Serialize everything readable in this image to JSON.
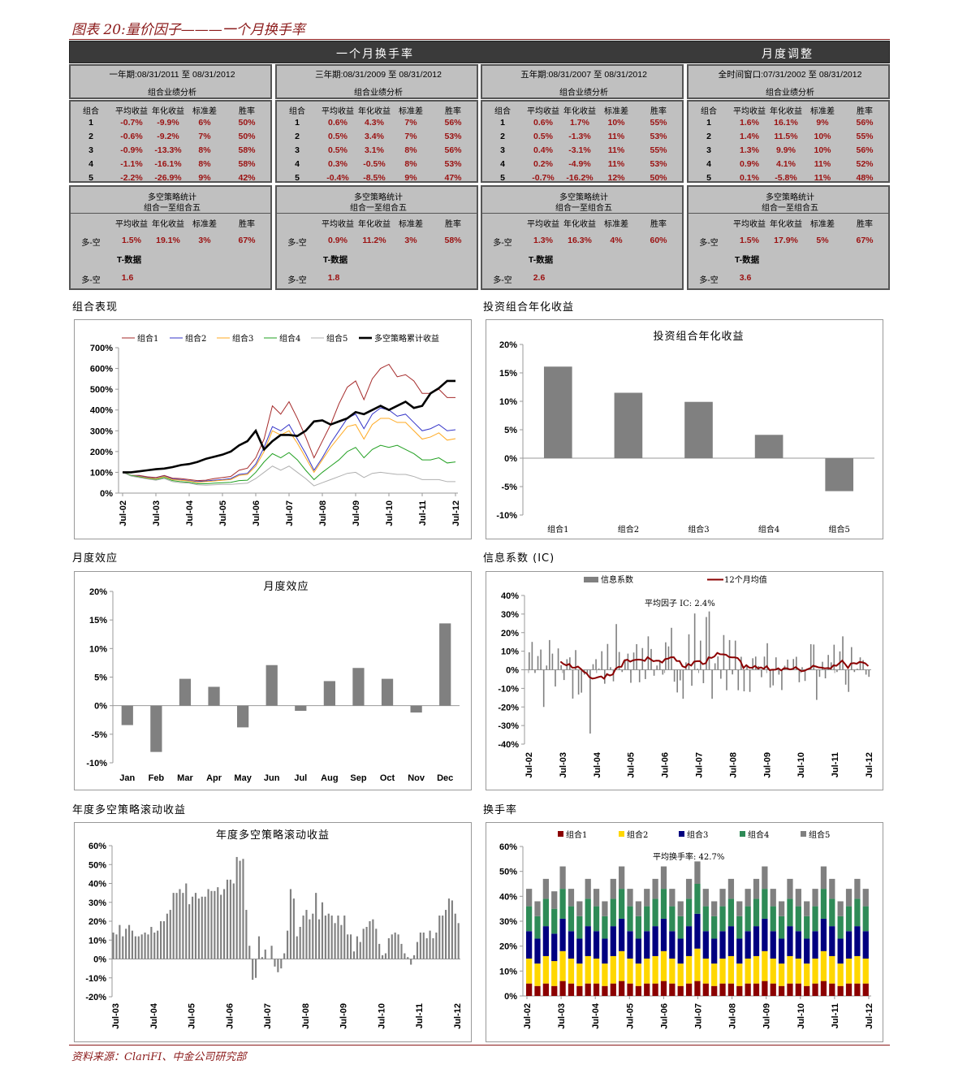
{
  "figure_title": "图表 20:量价因子———一个月换手率",
  "header": {
    "left": "一个月换手率",
    "right": "月度调整"
  },
  "columns": [
    "组合",
    "平均收益",
    "年化收益",
    "标准差",
    "胜率"
  ],
  "ls_columns": [
    "平均收益",
    "年化收益",
    "标准差",
    "胜率"
  ],
  "panels": [
    {
      "period": "一年期:08/31/2011 至 08/31/2012",
      "subtitle": "组合业绩分析",
      "rows": [
        [
          "1",
          "-0.7%",
          "-9.9%",
          "6%",
          "50%"
        ],
        [
          "2",
          "-0.6%",
          "-9.2%",
          "7%",
          "50%"
        ],
        [
          "3",
          "-0.9%",
          "-13.3%",
          "8%",
          "58%"
        ],
        [
          "4",
          "-1.1%",
          "-16.1%",
          "8%",
          "58%"
        ],
        [
          "5",
          "-2.2%",
          "-26.9%",
          "9%",
          "42%"
        ]
      ],
      "ls_title": "多空策略统计",
      "ls_subtitle": "组合一至组合五",
      "ls_row": [
        "多-空",
        "1.5%",
        "19.1%",
        "3%",
        "67%"
      ],
      "t_label": "T-数据",
      "t_row": [
        "多-空",
        "1.6"
      ]
    },
    {
      "period": "三年期:08/31/2009 至 08/31/2012",
      "subtitle": "组合业绩分析",
      "rows": [
        [
          "1",
          "0.6%",
          "4.3%",
          "7%",
          "56%"
        ],
        [
          "2",
          "0.5%",
          "3.4%",
          "7%",
          "53%"
        ],
        [
          "3",
          "0.5%",
          "3.1%",
          "8%",
          "56%"
        ],
        [
          "4",
          "0.3%",
          "-0.5%",
          "8%",
          "53%"
        ],
        [
          "5",
          "-0.4%",
          "-8.5%",
          "9%",
          "47%"
        ]
      ],
      "ls_title": "多空策略统计",
      "ls_subtitle": "组合一至组合五",
      "ls_row": [
        "多-空",
        "0.9%",
        "11.2%",
        "3%",
        "58%"
      ],
      "t_label": "T-数据",
      "t_row": [
        "多-空",
        "1.8"
      ]
    },
    {
      "period": "五年期:08/31/2007 至 08/31/2012",
      "subtitle": "组合业绩分析",
      "rows": [
        [
          "1",
          "0.6%",
          "1.7%",
          "10%",
          "55%"
        ],
        [
          "2",
          "0.5%",
          "-1.3%",
          "11%",
          "53%"
        ],
        [
          "3",
          "0.4%",
          "-3.1%",
          "11%",
          "55%"
        ],
        [
          "4",
          "0.2%",
          "-4.9%",
          "11%",
          "53%"
        ],
        [
          "5",
          "-0.7%",
          "-16.2%",
          "12%",
          "50%"
        ]
      ],
      "ls_title": "多空策略统计",
      "ls_subtitle": "组合一至组合五",
      "ls_row": [
        "多-空",
        "1.3%",
        "16.3%",
        "4%",
        "60%"
      ],
      "t_label": "T-数据",
      "t_row": [
        "多-空",
        "2.6"
      ]
    },
    {
      "period": "全时间窗口:07/31/2002 至 08/31/2012",
      "subtitle": "组合业绩分析",
      "rows": [
        [
          "1",
          "1.6%",
          "16.1%",
          "9%",
          "56%"
        ],
        [
          "2",
          "1.4%",
          "11.5%",
          "10%",
          "55%"
        ],
        [
          "3",
          "1.3%",
          "9.9%",
          "10%",
          "56%"
        ],
        [
          "4",
          "0.9%",
          "4.1%",
          "11%",
          "52%"
        ],
        [
          "5",
          "0.1%",
          "-5.8%",
          "11%",
          "48%"
        ]
      ],
      "ls_title": "多空策略统计",
      "ls_subtitle": "组合一至组合五",
      "ls_row": [
        "多-空",
        "1.5%",
        "17.9%",
        "5%",
        "67%"
      ],
      "t_label": "T-数据",
      "t_row": [
        "多-空",
        "3.6"
      ]
    }
  ],
  "sections": [
    "组合表现",
    "投资组合年化收益",
    "月度效应",
    "信息系数 (IC)",
    "年度多空策略滚动收益",
    "换手率"
  ],
  "source": "资料来源：ClariFI、中金公司研究部",
  "chart_data": [
    {
      "type": "line",
      "title": "",
      "frequency": "quarterly",
      "x_tick_labels": [
        "Jul-02",
        "Jul-03",
        "Jul-04",
        "Jul-05",
        "Jul-06",
        "Jul-07",
        "Jul-08",
        "Jul-09",
        "Jul-10",
        "Jul-11",
        "Jul-12"
      ],
      "ylim": [
        0,
        700
      ],
      "y_ticks": [
        0,
        100,
        200,
        300,
        400,
        500,
        600,
        700
      ],
      "y_tick_labels": [
        "0%",
        "100%",
        "200%",
        "300%",
        "400%",
        "500%",
        "600%",
        "700%"
      ],
      "legend_position": "top",
      "series": [
        {
          "name": "组合1",
          "color": "#a52a2a",
          "values": [
            100,
            85,
            85,
            78,
            75,
            85,
            72,
            70,
            65,
            60,
            62,
            70,
            75,
            80,
            110,
            120,
            170,
            260,
            420,
            380,
            440,
            360,
            270,
            170,
            250,
            330,
            430,
            510,
            540,
            450,
            550,
            600,
            620,
            560,
            570,
            540,
            480,
            480,
            500,
            460,
            460
          ]
        },
        {
          "name": "组合2",
          "color": "#3535c8",
          "values": [
            100,
            85,
            82,
            75,
            72,
            82,
            68,
            65,
            60,
            55,
            58,
            62,
            65,
            70,
            90,
            95,
            140,
            220,
            320,
            300,
            330,
            260,
            190,
            110,
            170,
            240,
            300,
            360,
            380,
            310,
            380,
            410,
            400,
            370,
            380,
            340,
            300,
            310,
            330,
            300,
            305
          ]
        },
        {
          "name": "组合3",
          "color": "#ffaa22",
          "values": [
            100,
            85,
            80,
            73,
            70,
            80,
            65,
            62,
            58,
            52,
            55,
            58,
            62,
            65,
            85,
            90,
            130,
            200,
            300,
            280,
            300,
            240,
            170,
            100,
            160,
            220,
            270,
            320,
            330,
            260,
            330,
            360,
            360,
            340,
            340,
            300,
            260,
            270,
            290,
            255,
            262
          ]
        },
        {
          "name": "组合4",
          "color": "#22a022",
          "values": [
            100,
            85,
            78,
            70,
            65,
            75,
            60,
            55,
            52,
            45,
            45,
            48,
            50,
            52,
            60,
            62,
            100,
            150,
            190,
            170,
            195,
            160,
            110,
            65,
            100,
            130,
            160,
            200,
            220,
            170,
            210,
            230,
            220,
            230,
            210,
            190,
            160,
            160,
            170,
            145,
            150
          ]
        },
        {
          "name": "组合5",
          "color": "#b0b0b0",
          "values": [
            100,
            82,
            75,
            68,
            62,
            70,
            55,
            50,
            48,
            40,
            38,
            40,
            42,
            42,
            45,
            48,
            70,
            100,
            130,
            110,
            130,
            100,
            70,
            35,
            50,
            65,
            80,
            95,
            100,
            75,
            95,
            100,
            95,
            90,
            90,
            80,
            65,
            65,
            65,
            55,
            55
          ]
        },
        {
          "name": "多空策略累计收益",
          "color": "#000000",
          "values": [
            100,
            100,
            105,
            110,
            115,
            118,
            125,
            135,
            140,
            150,
            165,
            175,
            185,
            200,
            230,
            250,
            300,
            210,
            250,
            280,
            280,
            275,
            300,
            345,
            350,
            330,
            345,
            360,
            390,
            380,
            400,
            420,
            400,
            420,
            440,
            410,
            420,
            480,
            505,
            540,
            540
          ]
        }
      ]
    },
    {
      "type": "bar",
      "title": "投资组合年化收益",
      "categories": [
        "组合1",
        "组合2",
        "组合3",
        "组合4",
        "组合5"
      ],
      "values": [
        16.1,
        11.5,
        9.9,
        4.1,
        -5.8
      ],
      "ylim": [
        -10,
        20
      ],
      "y_ticks": [
        -10,
        -5,
        0,
        5,
        10,
        15,
        20
      ],
      "y_tick_labels": [
        "-10%",
        "-5%",
        "0%",
        "5%",
        "10%",
        "15%",
        "20%"
      ],
      "color": "#808080"
    },
    {
      "type": "bar",
      "title": "月度效应",
      "categories": [
        "Jan",
        "Feb",
        "Mar",
        "Apr",
        "May",
        "Jun",
        "Jul",
        "Aug",
        "Sep",
        "Oct",
        "Nov",
        "Dec"
      ],
      "values": [
        -3.4,
        -8.1,
        4.7,
        3.3,
        -3.8,
        7.1,
        -0.9,
        4.3,
        6.6,
        4.7,
        -1.2,
        14.4
      ],
      "ylim": [
        -10,
        20
      ],
      "y_ticks": [
        -10,
        -5,
        0,
        5,
        10,
        15,
        20
      ],
      "y_tick_labels": [
        "-10%",
        "-5%",
        "0%",
        "5%",
        "10%",
        "15%",
        "20%"
      ],
      "color": "#808080"
    },
    {
      "type": "bar",
      "title": "",
      "frequency": "monthly",
      "annotation": "平均因子 IC: 2.4%",
      "legend_position": "top",
      "legend": [
        {
          "name": "信息系数",
          "color": "#808080",
          "kind": "bar"
        },
        {
          "name": "12个月均值",
          "color": "#8b0000",
          "kind": "line"
        }
      ],
      "x_tick_labels": [
        "Jul-02",
        "Jul-03",
        "Jul-04",
        "Jul-05",
        "Jul-06",
        "Jul-07",
        "Jul-08",
        "Jul-09",
        "Jul-10",
        "Jul-11",
        "Jul-12"
      ],
      "ylim": [
        -40,
        40
      ],
      "y_ticks": [
        -40,
        -30,
        -20,
        -10,
        0,
        10,
        20,
        30,
        40
      ],
      "y_tick_labels": [
        "-40%",
        "-30%",
        "-20%",
        "-10%",
        "0%",
        "10%",
        "20%",
        "30%",
        "40%"
      ],
      "values": [
        9.4,
        15,
        -1.7,
        7.4,
        10.9,
        -20,
        2.3,
        16,
        8.7,
        -9,
        11.5,
        2.5,
        -5.5,
        5.7,
        6.7,
        -15.5,
        10.6,
        -13.3,
        -12.3,
        -2.6,
        -1.7,
        -34.3,
        3,
        5.7,
        0.7,
        10,
        -7.5,
        13.9,
        1.4,
        -6.2,
        24.6,
        9.6,
        -1.2,
        5.7,
        8.7,
        -7,
        9.3,
        13.8,
        -6.7,
        11.7,
        -5,
        18,
        11.2,
        -3.2,
        2.3,
        5,
        -2.6,
        14.8,
        12.6,
        22.6,
        -6.4,
        -12.2,
        -5.7,
        -15.6,
        4,
        19.1,
        -8.6,
        30.3,
        0.6,
        15.7,
        -7.2,
        28.4,
        31.4,
        -15.6,
        3.5,
        7.2,
        -4.8,
        18.7,
        -11,
        16,
        -2.5,
        15.7,
        -11,
        7,
        -11.6,
        2.5,
        -11.9,
        6.2,
        7.1,
        2,
        -4,
        7.1,
        14.3,
        -9.6,
        -8.4,
        6.7,
        -2.6,
        -10.9,
        2.2,
        5.5,
        0,
        5.8,
        7,
        -6.7,
        1.4,
        -6,
        0.6,
        13.8,
        13.6,
        -16.2,
        -3.8,
        4.3,
        -4.6,
        8,
        4,
        13.5,
        -1.2,
        9.9,
        18,
        -8,
        -11.9,
        12.2,
        -1.2,
        0.6,
        6.7,
        5.2,
        -2.6,
        -3.8
      ]
    },
    {
      "type": "bar",
      "title": "年度多空策略滚动收益",
      "frequency": "monthly",
      "x_tick_labels": [
        "Jul-03",
        "Jul-04",
        "Jul-05",
        "Jul-06",
        "Jul-07",
        "Jul-08",
        "Jul-09",
        "Jul-10",
        "Jul-11",
        "Jul-12"
      ],
      "ylim": [
        -20,
        60
      ],
      "y_ticks": [
        -20,
        -10,
        0,
        10,
        20,
        30,
        40,
        50,
        60
      ],
      "y_tick_labels": [
        "-20%",
        "-10%",
        "0%",
        "10%",
        "20%",
        "30%",
        "40%",
        "50%",
        "60%"
      ],
      "color": "#808080",
      "values": [
        14,
        13,
        18,
        12,
        16,
        18,
        15,
        12,
        12,
        13,
        14,
        13,
        17,
        14,
        15,
        20,
        20,
        24,
        26,
        35,
        35,
        37,
        35,
        40,
        29,
        33,
        35,
        32,
        33,
        33,
        37,
        36,
        36,
        38,
        34,
        37,
        42,
        42,
        40,
        54,
        52,
        53,
        26,
        7,
        -11,
        -10,
        12,
        1,
        5,
        0,
        7,
        -4,
        -7,
        -5,
        3,
        15,
        37,
        32,
        12,
        17,
        23,
        26,
        21,
        24,
        35,
        21,
        30,
        23,
        24,
        23,
        19,
        23,
        18,
        23,
        13,
        13,
        4,
        12,
        9,
        16,
        17,
        20,
        21,
        16,
        8,
        2,
        3,
        11,
        13,
        14,
        13,
        8,
        3,
        1,
        -3,
        2,
        9,
        14,
        14,
        11,
        15,
        11,
        14,
        23,
        23,
        26,
        32,
        31,
        24,
        19
      ]
    },
    {
      "type": "stacked-bar",
      "title": "",
      "frequency": "quarterly",
      "annotation": "平均换手率: 42.7%",
      "legend_position": "top",
      "x_tick_labels": [
        "Jul-02",
        "Jul-03",
        "Jul-04",
        "Jul-05",
        "Jul-06",
        "Jul-07",
        "Jul-08",
        "Jul-09",
        "Jul-10",
        "Jul-11",
        "Jul-12"
      ],
      "ylim": [
        0,
        60
      ],
      "y_ticks": [
        0,
        10,
        20,
        30,
        40,
        50,
        60
      ],
      "y_tick_labels": [
        "0%",
        "10%",
        "20%",
        "30%",
        "40%",
        "50%",
        "60%"
      ],
      "series": [
        {
          "name": "组合1",
          "color": "#8b0000",
          "values": [
            5,
            4,
            5,
            4,
            6,
            5,
            4,
            5,
            5,
            4,
            5,
            6,
            5,
            4,
            5,
            5,
            6,
            5,
            4,
            5,
            6,
            5,
            4,
            5,
            5,
            4,
            5,
            5,
            6,
            5,
            4,
            5,
            5,
            4,
            5,
            6,
            5,
            4,
            5,
            5,
            5
          ]
        },
        {
          "name": "组合2",
          "color": "#ffd700",
          "values": [
            10,
            9,
            11,
            10,
            12,
            10,
            9,
            11,
            10,
            9,
            11,
            12,
            10,
            9,
            10,
            11,
            12,
            10,
            9,
            11,
            13,
            10,
            9,
            10,
            11,
            9,
            10,
            11,
            12,
            10,
            9,
            11,
            10,
            9,
            10,
            12,
            11,
            9,
            10,
            11,
            10
          ]
        },
        {
          "name": "组合3",
          "color": "#000080",
          "values": [
            11,
            10,
            12,
            11,
            13,
            11,
            10,
            12,
            11,
            10,
            12,
            13,
            11,
            10,
            11,
            12,
            13,
            11,
            10,
            12,
            14,
            11,
            10,
            11,
            12,
            10,
            11,
            12,
            13,
            11,
            10,
            12,
            11,
            10,
            11,
            13,
            12,
            10,
            11,
            12,
            11
          ]
        },
        {
          "name": "组合4",
          "color": "#2e8b57",
          "values": [
            10,
            9,
            11,
            10,
            12,
            10,
            9,
            11,
            10,
            9,
            11,
            12,
            10,
            9,
            10,
            11,
            12,
            10,
            9,
            11,
            12,
            10,
            9,
            10,
            11,
            9,
            10,
            11,
            12,
            10,
            9,
            11,
            10,
            9,
            10,
            12,
            11,
            9,
            10,
            11,
            10
          ]
        },
        {
          "name": "组合5",
          "color": "#808080",
          "values": [
            7,
            6,
            8,
            7,
            9,
            7,
            6,
            8,
            7,
            6,
            8,
            9,
            7,
            6,
            7,
            8,
            9,
            7,
            6,
            8,
            9,
            7,
            6,
            7,
            8,
            6,
            7,
            8,
            9,
            7,
            6,
            8,
            7,
            6,
            7,
            9,
            8,
            6,
            7,
            8,
            7
          ]
        }
      ]
    }
  ]
}
